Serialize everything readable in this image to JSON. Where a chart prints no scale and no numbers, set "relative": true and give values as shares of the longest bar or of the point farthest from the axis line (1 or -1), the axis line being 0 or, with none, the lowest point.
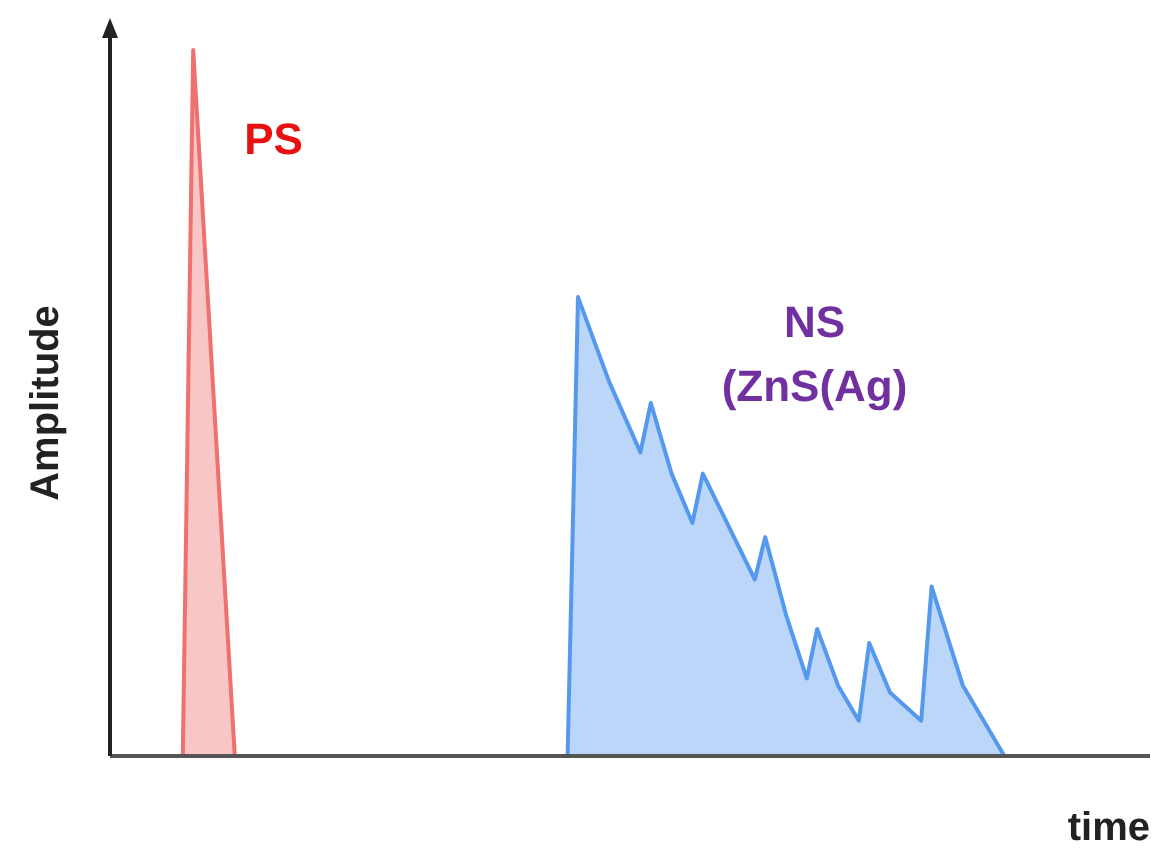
{
  "chart_data": {
    "type": "area",
    "xlabel": "time",
    "ylabel": "Amplitude",
    "relative": true,
    "categories": [
      null,
      null,
      null,
      null,
      null,
      null,
      null,
      null,
      null,
      null,
      null,
      null,
      null,
      null,
      null,
      null,
      null,
      null,
      null,
      null,
      null,
      null,
      null,
      null,
      null,
      null,
      null,
      null,
      null,
      null,
      null,
      null,
      null,
      null,
      null,
      null,
      null,
      null,
      null,
      null,
      null,
      null,
      null,
      null,
      null,
      null,
      null,
      null,
      null,
      null,
      null,
      null,
      null,
      null,
      null,
      null,
      null,
      null,
      null,
      null,
      null,
      null,
      null,
      null,
      null,
      null,
      null,
      null,
      null,
      null,
      null,
      null,
      null,
      null,
      null,
      null,
      null,
      null,
      null,
      null,
      null,
      null,
      null,
      null,
      null,
      null,
      null,
      null,
      null,
      null,
      null,
      null,
      null,
      null,
      null,
      null,
      null,
      null,
      null,
      null,
      null
    ],
    "series": [
      {
        "name": "PS",
        "color": "#f07070",
        "values": [
          null,
          null,
          null,
          null,
          null,
          null,
          null,
          0,
          1,
          null,
          null,
          null,
          0,
          null,
          null,
          null,
          null,
          null,
          null,
          null,
          null,
          null,
          null,
          null,
          null,
          null,
          null,
          null,
          null,
          null,
          null,
          null,
          null,
          null,
          null,
          null,
          null,
          null,
          null,
          null,
          null,
          null,
          null,
          null,
          null,
          null,
          null,
          null,
          null,
          null,
          null,
          null,
          null,
          null,
          null,
          null,
          null,
          null,
          null,
          null,
          null,
          null,
          null,
          null,
          null,
          null,
          null,
          null,
          null,
          null,
          null,
          null,
          null,
          null,
          null,
          null,
          null,
          null,
          null,
          null,
          null,
          null,
          null,
          null,
          null,
          null,
          null,
          null,
          null,
          null,
          null,
          null,
          null,
          null,
          null,
          null,
          null,
          null,
          null,
          null,
          null
        ]
      },
      {
        "name": "NS (ZnS(Ag)",
        "color": "#5599ee",
        "values": [
          null,
          null,
          null,
          null,
          null,
          null,
          null,
          null,
          null,
          null,
          null,
          null,
          null,
          null,
          null,
          null,
          null,
          null,
          null,
          null,
          null,
          null,
          null,
          null,
          null,
          null,
          null,
          null,
          null,
          null,
          null,
          null,
          null,
          null,
          null,
          null,
          null,
          null,
          null,
          null,
          null,
          null,
          null,
          null,
          0,
          0.65,
          null,
          null,
          0.53,
          null,
          null,
          0.43,
          0.5,
          null,
          0.4,
          null,
          0.33,
          0.4,
          null,
          null,
          0.31,
          null,
          0.25,
          0.31,
          null,
          0.2,
          null,
          0.11,
          0.18,
          null,
          0.1,
          null,
          0.05,
          0.16,
          null,
          0.09,
          null,
          null,
          0.05,
          0.24,
          null,
          null,
          0.1,
          null,
          null,
          null,
          0,
          null,
          null,
          null,
          null,
          null,
          null,
          null,
          null,
          null,
          null,
          null,
          null,
          null,
          null
        ]
      }
    ]
  }
}
